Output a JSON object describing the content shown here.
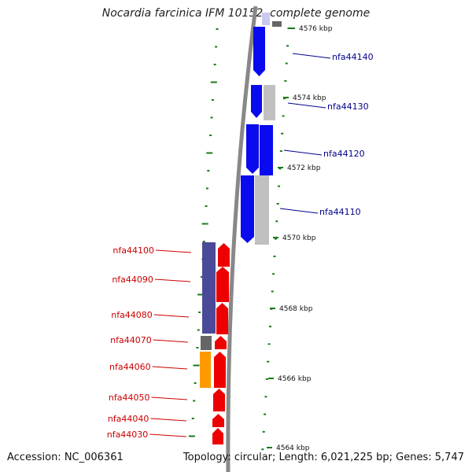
{
  "title": "Nocardia farcinica IFM 10152, complete genome",
  "footer": {
    "accession": "Accession: NC_006361",
    "summary": "Topology: circular; Length: 6,021,225 bp; Genes: 5,747"
  },
  "colors": {
    "backbone": "#888888",
    "tick": "#1a7a1a",
    "forward_label": "#00008b",
    "reverse_label": "#cc0000",
    "blue": "#0a0aee",
    "gray": "#c0c0c0",
    "dark_gray": "#666666",
    "red": "#ee0000",
    "purple": "#4a4a98",
    "orange": "#ff9900"
  },
  "kbp_ticks": [
    {
      "label": "4576 kbp"
    },
    {
      "label": "4574 kbp"
    },
    {
      "label": "4572 kbp"
    },
    {
      "label": "4570 kbp"
    },
    {
      "label": "4568 kbp"
    },
    {
      "label": "4566 kbp"
    },
    {
      "label": "4564 kbp"
    }
  ],
  "gene_labels_forward": [
    "nfa44140",
    "nfa44130",
    "nfa44120",
    "nfa44110"
  ],
  "gene_labels_reverse": [
    "nfa44100",
    "nfa44090",
    "nfa44080",
    "nfa44070",
    "nfa44060",
    "nfa44050",
    "nfa44040",
    "nfa44030"
  ]
}
